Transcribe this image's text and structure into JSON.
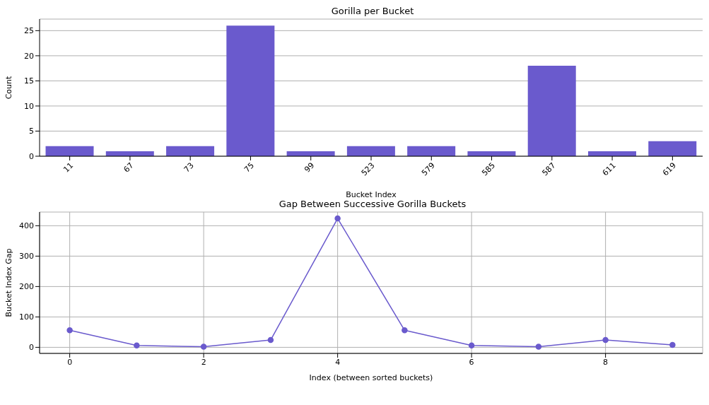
{
  "chart_data": [
    {
      "type": "bar",
      "title": "Gorilla per Bucket",
      "xlabel": "Bucket Index",
      "ylabel": "Count",
      "categories": [
        "11",
        "67",
        "73",
        "75",
        "99",
        "523",
        "579",
        "585",
        "587",
        "611",
        "619"
      ],
      "values": [
        2,
        1,
        2,
        26,
        1,
        2,
        2,
        1,
        18,
        1,
        3
      ],
      "color": "#6a5acd",
      "ylim": [
        0,
        27.3
      ],
      "yticks": [
        0,
        5,
        10,
        15,
        20,
        25
      ],
      "grid": "y"
    },
    {
      "type": "line",
      "title": "Gap Between Successive Gorilla Buckets",
      "xlabel": "Index (between sorted buckets)",
      "ylabel": "Bucket Index Gap",
      "x": [
        0,
        1,
        2,
        3,
        4,
        5,
        6,
        7,
        8,
        9
      ],
      "values": [
        56,
        6,
        2,
        24,
        424,
        56,
        6,
        2,
        24,
        8
      ],
      "color": "#6a5acd",
      "xlim": [
        -0.45,
        9.45
      ],
      "xticks": [
        0,
        2,
        4,
        6,
        8
      ],
      "ylim": [
        -20,
        445
      ],
      "yticks": [
        0,
        100,
        200,
        300,
        400
      ],
      "grid": true,
      "marker": "circle"
    }
  ]
}
